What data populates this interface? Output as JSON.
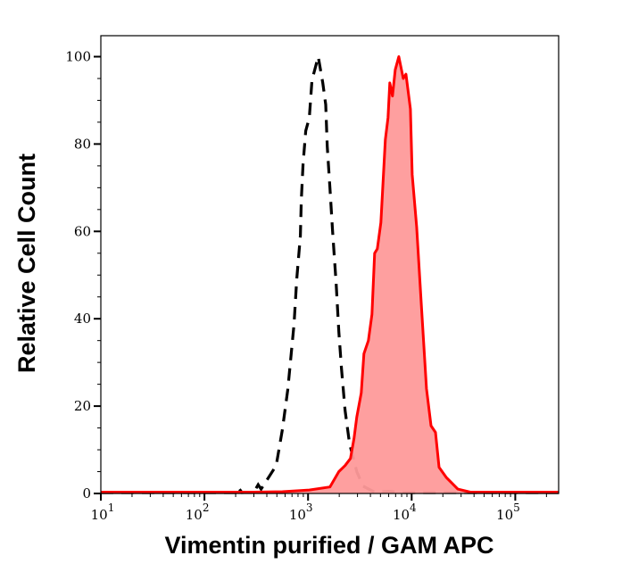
{
  "chart_data": {
    "type": "area",
    "title": "",
    "xlabel": "Vimentin purified / GAM APC",
    "ylabel": "Relative Cell Count",
    "xscale": "log",
    "xlim": [
      10,
      262144
    ],
    "ylim": [
      0,
      104.8
    ],
    "grid": false,
    "legend": "none",
    "x_ticks": [
      {
        "value": 10,
        "base": "10",
        "exp": "1"
      },
      {
        "value": 100,
        "base": "10",
        "exp": "2"
      },
      {
        "value": 1000,
        "base": "10",
        "exp": "3"
      },
      {
        "value": 10000,
        "base": "10",
        "exp": "4"
      },
      {
        "value": 100000,
        "base": "10",
        "exp": "5"
      }
    ],
    "y_ticks": [
      "0",
      "20",
      "40",
      "60",
      "80",
      "100"
    ],
    "series": [
      {
        "style": "dashed-line",
        "color": "#000000",
        "points": [
          [
            10,
            0.2
          ],
          [
            200,
            0.2
          ],
          [
            210,
            1.5
          ],
          [
            230,
            0.2
          ],
          [
            300,
            0.3
          ],
          [
            330,
            2
          ],
          [
            352,
            1
          ],
          [
            493,
            6.4
          ],
          [
            566,
            14.7
          ],
          [
            638,
            23.8
          ],
          [
            733,
            38.8
          ],
          [
            778,
            49
          ],
          [
            843,
            59
          ],
          [
            860,
            67
          ],
          [
            895,
            75.4
          ],
          [
            949,
            83
          ],
          [
            1028,
            86
          ],
          [
            1091,
            94.6
          ],
          [
            1254,
            100
          ],
          [
            1386,
            94
          ],
          [
            1480,
            89
          ],
          [
            1531,
            79.5
          ],
          [
            1625,
            70
          ],
          [
            1726,
            60
          ],
          [
            1867,
            48
          ],
          [
            1983,
            37
          ],
          [
            2104,
            28.5
          ],
          [
            2277,
            19
          ],
          [
            2515,
            11.4
          ],
          [
            2951,
            5
          ],
          [
            3390,
            1.7
          ],
          [
            4390,
            0.3
          ],
          [
            6000,
            0.5
          ],
          [
            8000,
            0.2
          ],
          [
            262144,
            0.2
          ]
        ]
      },
      {
        "style": "filled",
        "color": "#ff0000",
        "fill": "#fe9a9a",
        "points": [
          [
            10,
            0.3
          ],
          [
            300,
            0.3
          ],
          [
            566,
            0.4
          ],
          [
            1028,
            0.8
          ],
          [
            1625,
            1.5
          ],
          [
            1983,
            5
          ],
          [
            2277,
            6.4
          ],
          [
            2565,
            8
          ],
          [
            2779,
            12.6
          ],
          [
            2951,
            17.5
          ],
          [
            3258,
            23
          ],
          [
            3458,
            32
          ],
          [
            3820,
            35
          ],
          [
            4140,
            41
          ],
          [
            4390,
            55
          ],
          [
            4660,
            56
          ],
          [
            5045,
            62
          ],
          [
            5570,
            81
          ],
          [
            5915,
            86
          ],
          [
            6150,
            94
          ],
          [
            6530,
            91
          ],
          [
            6935,
            97
          ],
          [
            7515,
            100
          ],
          [
            8300,
            95
          ],
          [
            8810,
            96
          ],
          [
            9730,
            88
          ],
          [
            10120,
            73
          ],
          [
            11170,
            61
          ],
          [
            12350,
            44
          ],
          [
            13900,
            24
          ],
          [
            15380,
            15.5
          ],
          [
            16980,
            14
          ],
          [
            18370,
            6
          ],
          [
            21540,
            3.7
          ],
          [
            27900,
            1
          ],
          [
            36800,
            0.3
          ],
          [
            262144,
            0.3
          ]
        ]
      }
    ]
  }
}
